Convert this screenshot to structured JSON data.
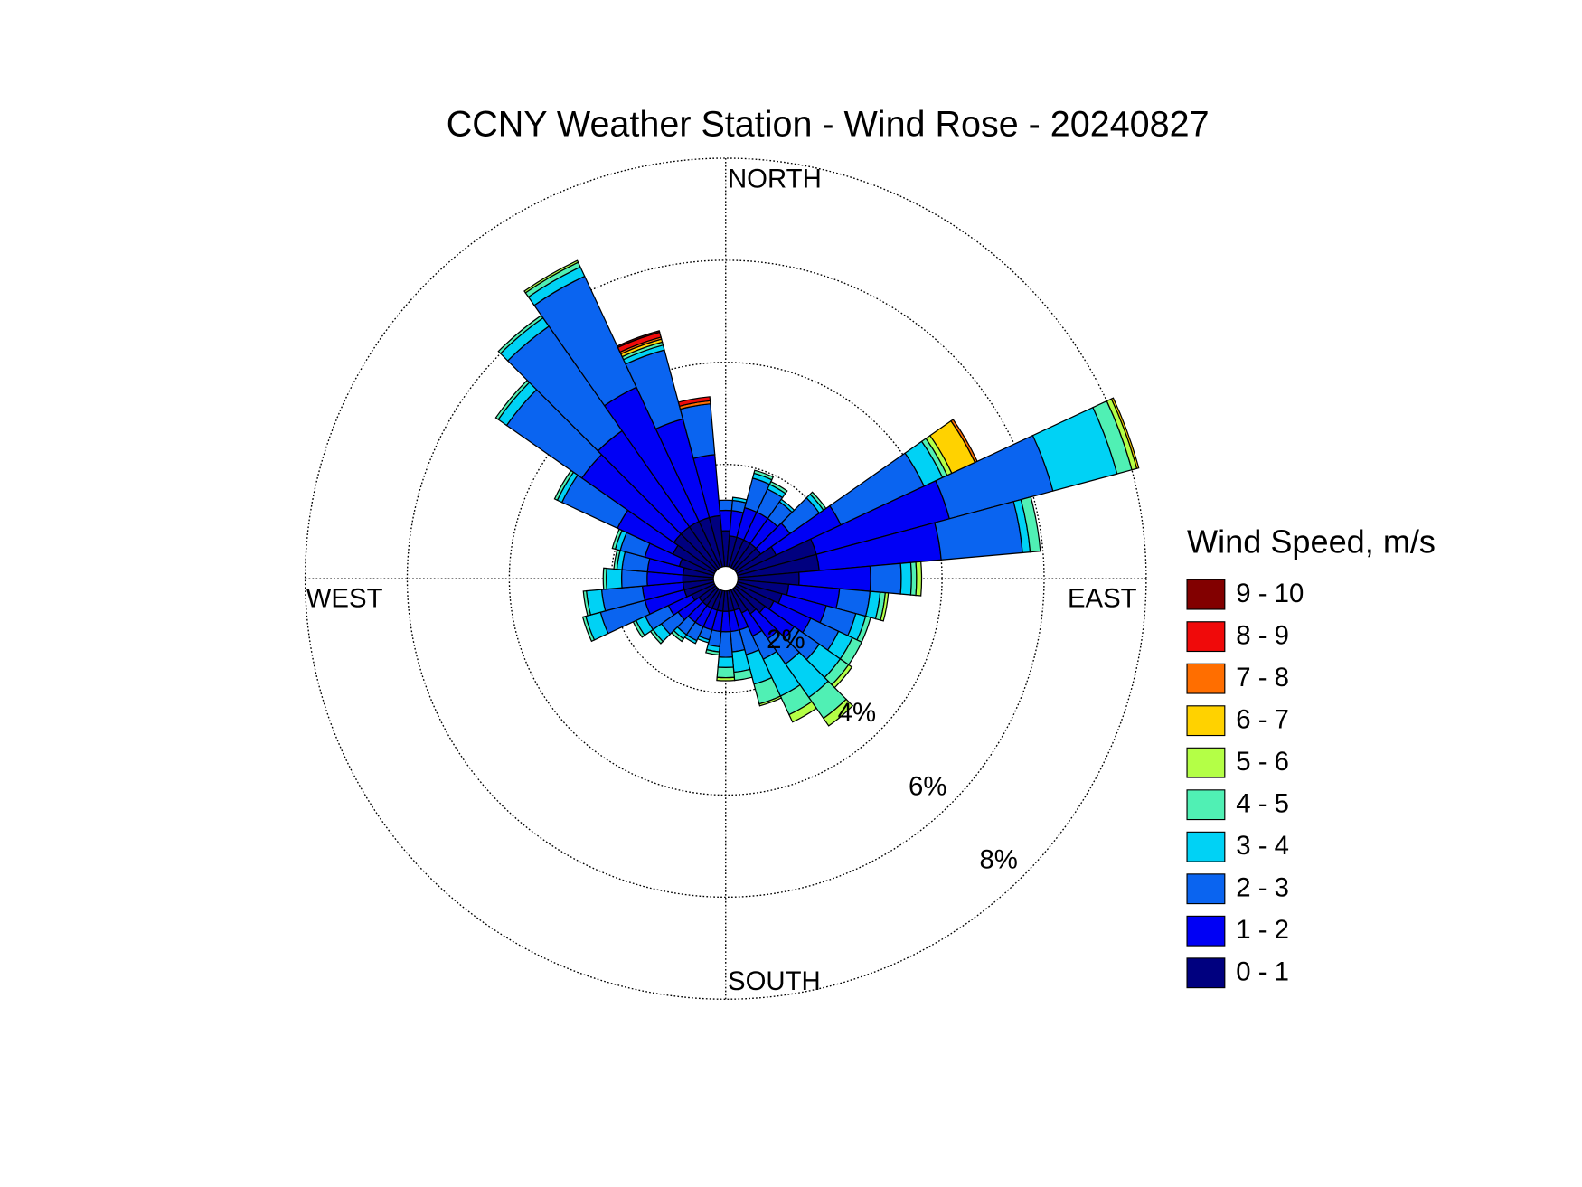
{
  "chart_data": {
    "type": "windrose",
    "title": "CCNY Weather Station - Wind Rose - 20240827",
    "direction_labels": {
      "north": "NORTH",
      "south": "SOUTH",
      "east": "EAST",
      "west": "WEST"
    },
    "legend_title": "Wind Speed, m/s",
    "directions": [
      0,
      10,
      20,
      30,
      40,
      50,
      60,
      70,
      80,
      90,
      100,
      110,
      120,
      130,
      140,
      150,
      160,
      170,
      180,
      190,
      200,
      210,
      220,
      230,
      240,
      250,
      260,
      270,
      280,
      290,
      300,
      310,
      320,
      330,
      340,
      350
    ],
    "rlim": [
      0,
      8
    ],
    "rticks": [
      {
        "value": 2,
        "label": "2%"
      },
      {
        "value": 4,
        "label": "4%"
      },
      {
        "value": 6,
        "label": "6%"
      },
      {
        "value": 8,
        "label": "8%"
      }
    ],
    "grid": true,
    "series": [
      {
        "name": "0 - 1",
        "color": "#00007f",
        "values": [
          0.7,
          0.6,
          0.6,
          0.6,
          0.6,
          0.6,
          0.85,
          1.6,
          1.6,
          1.2,
          1.0,
          0.9,
          0.8,
          0.7,
          0.6,
          0.5,
          0.4,
          0.4,
          0.4,
          0.4,
          0.4,
          0.4,
          0.4,
          0.4,
          0.5,
          0.6,
          0.6,
          0.6,
          0.6,
          0.7,
          0.9,
          1.0,
          1.0,
          1.0,
          1.0,
          1.0
        ]
      },
      {
        "name": "1 - 2",
        "color": "#0000f5",
        "values": [
          0.4,
          0.5,
          0.6,
          0.6,
          0.6,
          0.7,
          1.4,
          2.7,
          2.4,
          1.4,
          1.0,
          0.9,
          0.8,
          0.7,
          0.6,
          0.5,
          0.4,
          0.4,
          0.4,
          0.4,
          0.4,
          0.4,
          0.4,
          0.5,
          0.5,
          0.8,
          0.8,
          0.7,
          0.7,
          0.7,
          1.2,
          2.2,
          2.3,
          2.9,
          2.0,
          1.2
        ]
      },
      {
        "name": "2 - 3",
        "color": "#0a64f0",
        "values": [
          0.2,
          0.2,
          0.6,
          0.5,
          0.4,
          0.7,
          1.8,
          2.1,
          1.6,
          0.6,
          0.6,
          0.6,
          0.6,
          0.6,
          0.6,
          0.5,
          0.5,
          0.4,
          0.5,
          0.3,
          0.2,
          0.3,
          0.3,
          0.4,
          0.5,
          0.9,
          0.8,
          0.5,
          0.5,
          0.5,
          1.2,
          1.8,
          2.5,
          2.4,
          1.4,
          1.0
        ]
      },
      {
        "name": "3 - 4",
        "color": "#00d2f5",
        "values": [
          0,
          0.06,
          0.1,
          0.1,
          0.06,
          0.1,
          0.4,
          1.3,
          0.15,
          0.2,
          0.2,
          0.2,
          0.3,
          0.5,
          0.8,
          0.8,
          0.6,
          0.4,
          0.2,
          0.1,
          0.06,
          0.06,
          0.1,
          0.2,
          0.2,
          0.3,
          0.3,
          0.3,
          0.1,
          0.1,
          0.1,
          0.2,
          0.2,
          0.2,
          0.1,
          0
        ]
      },
      {
        "name": "4 - 5",
        "color": "#50f0b4",
        "values": [
          0,
          0,
          0.06,
          0.06,
          0,
          0.06,
          0.1,
          0.3,
          0.2,
          0.1,
          0.1,
          0.1,
          0.2,
          0.2,
          0.5,
          0.4,
          0.4,
          0.16,
          0.2,
          0.06,
          0,
          0,
          0.06,
          0.06,
          0.06,
          0.06,
          0.06,
          0.06,
          0.06,
          0.06,
          0.06,
          0.06,
          0.06,
          0.1,
          0.06,
          0
        ]
      },
      {
        "name": "5 - 6",
        "color": "#b4ff46",
        "values": [
          0,
          0,
          0,
          0,
          0,
          0,
          0.1,
          0.1,
          0,
          0.1,
          0.06,
          0,
          0,
          0.08,
          0.18,
          0.16,
          0.04,
          0,
          0.06,
          0,
          0,
          0,
          0,
          0,
          0,
          0,
          0,
          0,
          0,
          0,
          0,
          0,
          0,
          0.04,
          0,
          0
        ]
      },
      {
        "name": "6 - 7",
        "color": "#ffd200",
        "values": [
          0,
          0,
          0,
          0,
          0,
          0,
          0.5,
          0.04,
          0,
          0,
          0,
          0,
          0,
          0,
          0,
          0,
          0,
          0,
          0,
          0,
          0,
          0,
          0,
          0,
          0,
          0,
          0,
          0,
          0,
          0,
          0,
          0,
          0,
          0,
          0.06,
          0
        ]
      },
      {
        "name": "7 - 8",
        "color": "#ff6e00",
        "values": [
          0,
          0,
          0,
          0,
          0,
          0,
          0.05,
          0,
          0,
          0,
          0,
          0,
          0,
          0,
          0,
          0,
          0,
          0,
          0,
          0,
          0,
          0,
          0,
          0,
          0,
          0,
          0,
          0,
          0,
          0,
          0,
          0,
          0,
          0,
          0.04,
          0.06
        ]
      },
      {
        "name": "8 - 9",
        "color": "#f00a0a",
        "values": [
          0,
          0,
          0,
          0,
          0,
          0,
          0,
          0,
          0,
          0,
          0,
          0,
          0,
          0,
          0,
          0,
          0,
          0,
          0,
          0,
          0,
          0,
          0,
          0,
          0,
          0,
          0,
          0,
          0,
          0,
          0,
          0,
          0,
          0,
          0.1,
          0.08
        ]
      },
      {
        "name": "9 - 10",
        "color": "#820000",
        "values": [
          0,
          0,
          0,
          0,
          0,
          0,
          0,
          0,
          0,
          0,
          0,
          0,
          0,
          0,
          0,
          0,
          0,
          0,
          0,
          0,
          0,
          0,
          0,
          0,
          0,
          0,
          0,
          0,
          0,
          0,
          0,
          0,
          0,
          0,
          0.03,
          0
        ]
      }
    ]
  }
}
